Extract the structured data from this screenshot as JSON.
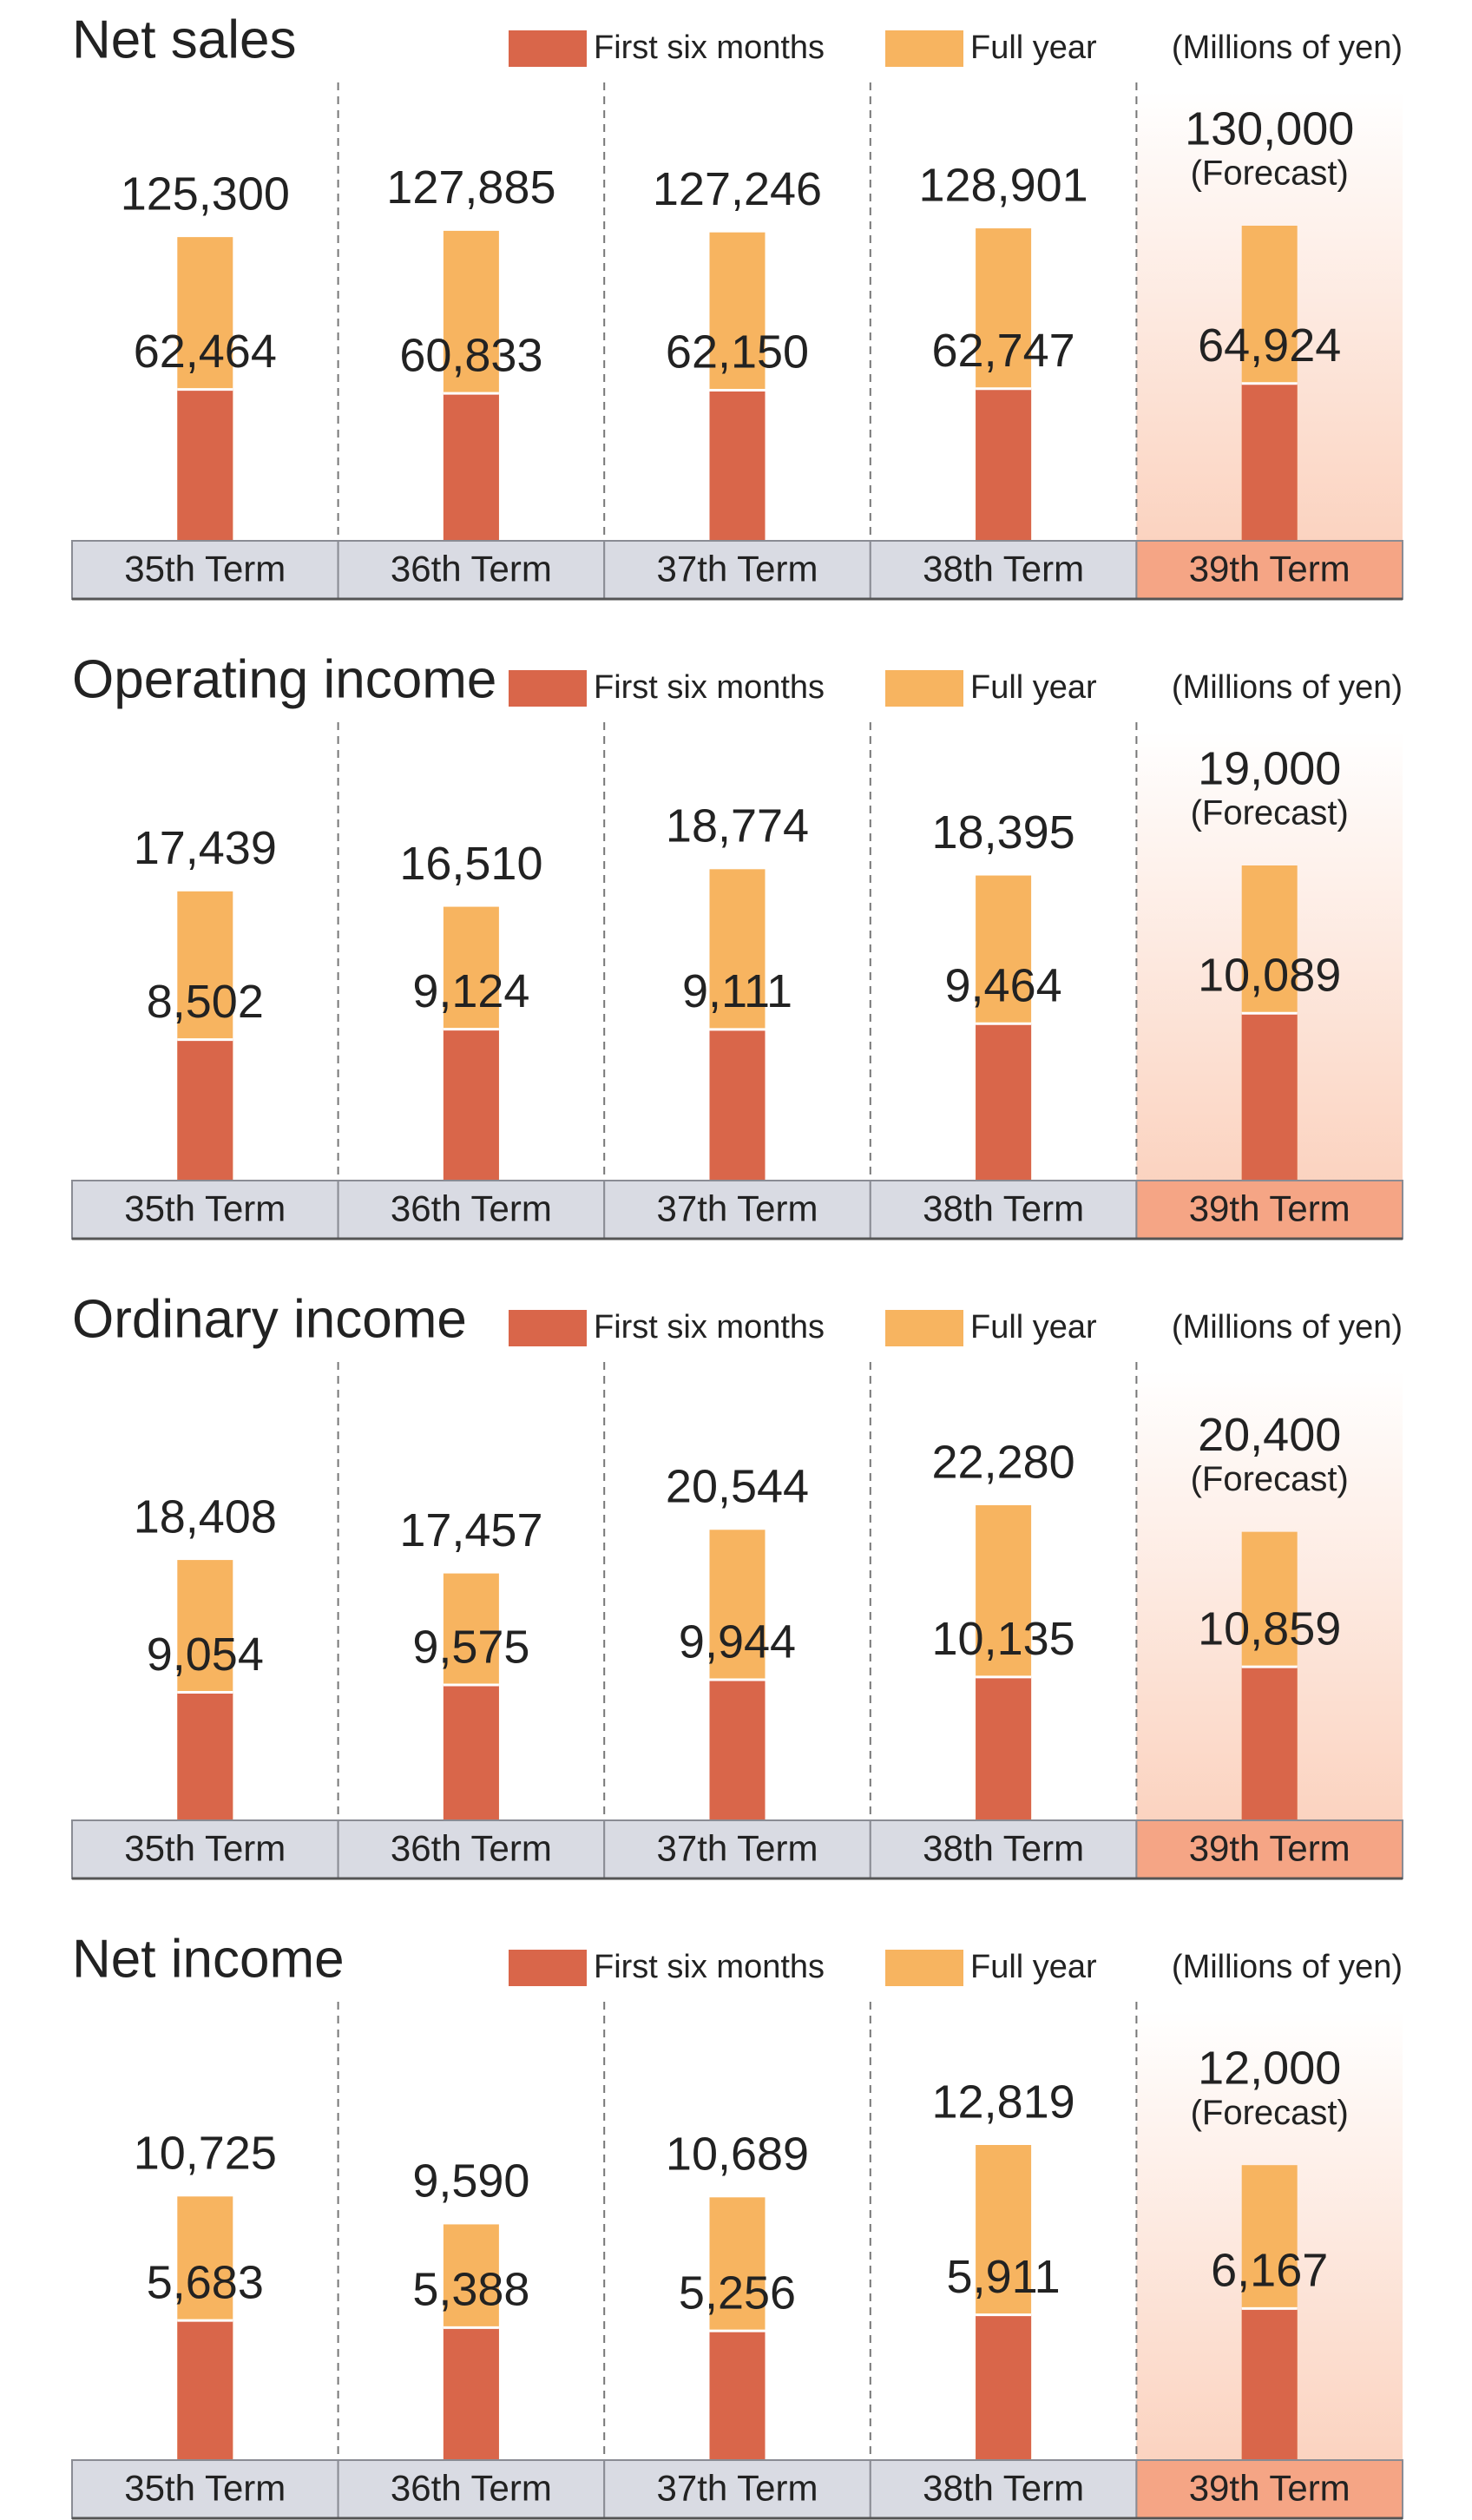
{
  "chart_data": [
    {
      "type": "bar",
      "title": "Net sales",
      "unit": "(Millions of yen)",
      "categories": [
        "35th Term",
        "36th Term",
        "37th Term",
        "38th Term",
        "39th Term"
      ],
      "series": [
        {
          "name": "Full year",
          "color": "#f7b460",
          "values": [
            125300,
            127885,
            127246,
            128901,
            130000
          ],
          "value_labels": [
            "125,300",
            "127,885",
            "127,246",
            "128,901",
            "130,000"
          ]
        },
        {
          "name": "First six months",
          "color": "#d9664a",
          "values": [
            62464,
            60833,
            62150,
            62747,
            64924
          ],
          "value_labels": [
            "62,464",
            "60,833",
            "62,150",
            "62,747",
            "64,924"
          ]
        }
      ],
      "annotation": {
        "text": "(Forecast)",
        "category": 4
      }
    },
    {
      "type": "bar",
      "title": "Operating income",
      "unit": "(Millions of yen)",
      "categories": [
        "35th Term",
        "36th Term",
        "37th Term",
        "38th Term",
        "39th Term"
      ],
      "series": [
        {
          "name": "Full year",
          "color": "#f7b460",
          "values": [
            17439,
            16510,
            18774,
            18395,
            19000
          ],
          "value_labels": [
            "17,439",
            "16,510",
            "18,774",
            "18,395",
            "19,000"
          ]
        },
        {
          "name": "First six months",
          "color": "#d9664a",
          "values": [
            8502,
            9124,
            9111,
            9464,
            10089
          ],
          "value_labels": [
            "8,502",
            "9,124",
            "9,111",
            "9,464",
            "10,089"
          ]
        }
      ],
      "annotation": {
        "text": "(Forecast)",
        "category": 4
      }
    },
    {
      "type": "bar",
      "title": "Ordinary income",
      "unit": "(Millions of yen)",
      "categories": [
        "35th Term",
        "36th Term",
        "37th Term",
        "38th Term",
        "39th Term"
      ],
      "series": [
        {
          "name": "Full year",
          "color": "#f7b460",
          "values": [
            18408,
            17457,
            20544,
            22280,
            20400
          ],
          "value_labels": [
            "18,408",
            "17,457",
            "20,544",
            "22,280",
            "20,400"
          ]
        },
        {
          "name": "First six months",
          "color": "#d9664a",
          "values": [
            9054,
            9575,
            9944,
            10135,
            10859
          ],
          "value_labels": [
            "9,054",
            "9,575",
            "9,944",
            "10,135",
            "10,859"
          ]
        }
      ],
      "annotation": {
        "text": "(Forecast)",
        "category": 4
      }
    },
    {
      "type": "bar",
      "title": "Net income",
      "unit": "(Millions of yen)",
      "categories": [
        "35th Term",
        "36th Term",
        "37th Term",
        "38th Term",
        "39th Term"
      ],
      "series": [
        {
          "name": "Full year",
          "color": "#f7b460",
          "values": [
            10725,
            9590,
            10689,
            12819,
            12000
          ],
          "value_labels": [
            "10,725",
            "9,590",
            "10,689",
            "12,819",
            "12,000"
          ]
        },
        {
          "name": "First six months",
          "color": "#d9664a",
          "values": [
            5683,
            5388,
            5256,
            5911,
            6167
          ],
          "value_labels": [
            "5,683",
            "5,388",
            "5,256",
            "5,911",
            "6,167"
          ]
        }
      ],
      "annotation": {
        "text": "(Forecast)",
        "category": 4
      }
    }
  ]
}
